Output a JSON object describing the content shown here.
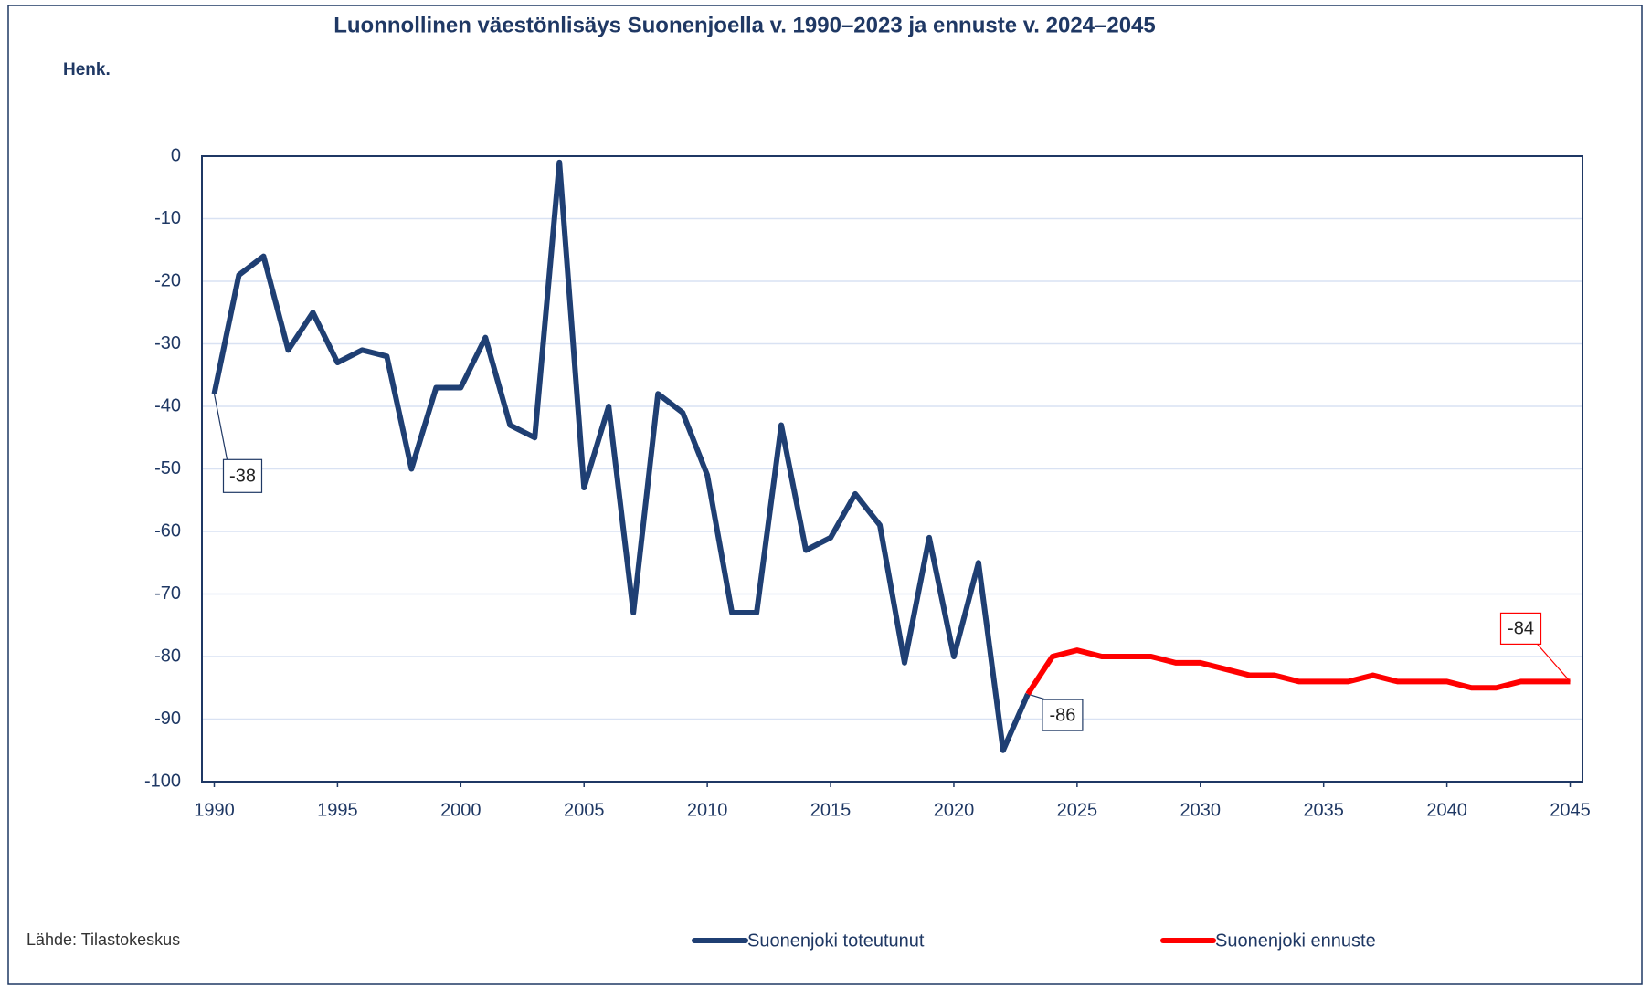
{
  "chart_data": {
    "type": "line",
    "title": "Luonnollinen väestönlisäys Suonenjoella v. 1990–2023 ja ennuste v. 2024–2045",
    "y_label": "Henk.",
    "source": "Lähde: Tilastokeskus",
    "x": [
      1990,
      1991,
      1992,
      1993,
      1994,
      1995,
      1996,
      1997,
      1998,
      1999,
      2000,
      2001,
      2002,
      2003,
      2004,
      2005,
      2006,
      2007,
      2008,
      2009,
      2010,
      2011,
      2012,
      2013,
      2014,
      2015,
      2016,
      2017,
      2018,
      2019,
      2020,
      2021,
      2022,
      2023,
      2024,
      2025,
      2026,
      2027,
      2028,
      2029,
      2030,
      2031,
      2032,
      2033,
      2034,
      2035,
      2036,
      2037,
      2038,
      2039,
      2040,
      2041,
      2042,
      2043,
      2044,
      2045
    ],
    "series": [
      {
        "name": "Suonenjoki toteutunut",
        "color": "#1f3f73",
        "values": [
          -38,
          -19,
          -16,
          -31,
          -25,
          -33,
          -31,
          -32,
          -50,
          -37,
          -37,
          -29,
          -43,
          -45,
          -1,
          -53,
          -40,
          -73,
          -38,
          -41,
          -51,
          -73,
          -73,
          -43,
          -63,
          -61,
          -54,
          -59,
          -81,
          -61,
          -80,
          -65,
          -95,
          -86,
          null,
          null,
          null,
          null,
          null,
          null,
          null,
          null,
          null,
          null,
          null,
          null,
          null,
          null,
          null,
          null,
          null,
          null,
          null,
          null,
          null,
          null
        ],
        "labeled": [
          0,
          33
        ]
      },
      {
        "name": "Suonenjoki ennuste",
        "color": "#ff0000",
        "values": [
          null,
          null,
          null,
          null,
          null,
          null,
          null,
          null,
          null,
          null,
          null,
          null,
          null,
          null,
          null,
          null,
          null,
          null,
          null,
          null,
          null,
          null,
          null,
          null,
          null,
          null,
          null,
          null,
          null,
          null,
          null,
          null,
          null,
          -86,
          -80,
          -79,
          -80,
          -80,
          -80,
          -81,
          -81,
          -82,
          -83,
          -83,
          -84,
          -84,
          -84,
          -83,
          -84,
          -84,
          -84,
          -85,
          -85,
          -84,
          -84,
          -84
        ],
        "labeled": [
          55
        ]
      }
    ],
    "xlim": [
      1989.5,
      2045.5
    ],
    "xticks": [
      1990,
      1995,
      2000,
      2005,
      2010,
      2015,
      2020,
      2025,
      2030,
      2035,
      2040,
      2045
    ],
    "ylim": [
      -100,
      0
    ],
    "yticks": [
      0,
      -10,
      -20,
      -30,
      -40,
      -50,
      -60,
      -70,
      -80,
      -90,
      -100
    ],
    "grid": true
  }
}
